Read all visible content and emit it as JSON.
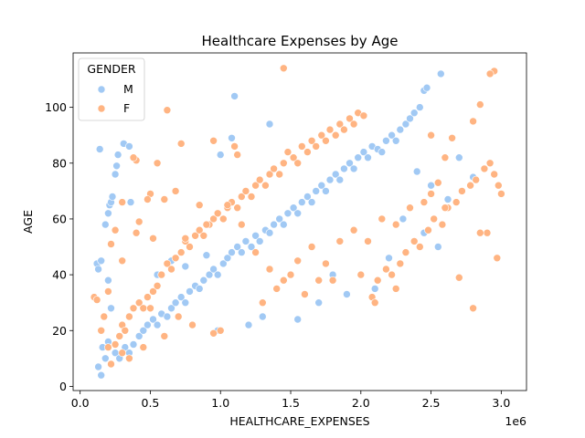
{
  "chart_data": {
    "type": "scatter",
    "title": "Healthcare Expenses by Age",
    "xlabel": "HEALTHCARE_EXPENSES",
    "ylabel": "AGE",
    "x_offset_label": "1e6",
    "xlim": [
      -0.05,
      3.18
    ],
    "ylim": [
      -1.5,
      119.5
    ],
    "x_ticks": [
      0.0,
      0.5,
      1.0,
      1.5,
      2.0,
      2.5,
      3.0
    ],
    "x_tick_labels": [
      "0.0",
      "0.5",
      "1.0",
      "1.5",
      "2.0",
      "2.5",
      "3.0"
    ],
    "y_ticks": [
      0,
      20,
      40,
      60,
      80,
      100
    ],
    "y_tick_labels": [
      "0",
      "20",
      "40",
      "60",
      "80",
      "100"
    ],
    "grid": false,
    "legend": {
      "title": "GENDER",
      "placement": "top-left"
    },
    "series": [
      {
        "name": "M",
        "color": "#a1c9f4",
        "points": [
          [
            0.13,
            7
          ],
          [
            0.15,
            4
          ],
          [
            0.16,
            14
          ],
          [
            0.18,
            10
          ],
          [
            0.2,
            16
          ],
          [
            0.25,
            12
          ],
          [
            0.28,
            10
          ],
          [
            0.32,
            14
          ],
          [
            0.35,
            12
          ],
          [
            0.38,
            15
          ],
          [
            0.42,
            18
          ],
          [
            0.45,
            20
          ],
          [
            0.48,
            22
          ],
          [
            0.52,
            24
          ],
          [
            0.55,
            22
          ],
          [
            0.58,
            26
          ],
          [
            0.62,
            25
          ],
          [
            0.65,
            28
          ],
          [
            0.68,
            30
          ],
          [
            0.72,
            32
          ],
          [
            0.75,
            30
          ],
          [
            0.78,
            34
          ],
          [
            0.82,
            36
          ],
          [
            0.85,
            35
          ],
          [
            0.88,
            38
          ],
          [
            0.92,
            40
          ],
          [
            0.95,
            42
          ],
          [
            0.98,
            40
          ],
          [
            1.02,
            44
          ],
          [
            1.05,
            46
          ],
          [
            1.08,
            48
          ],
          [
            1.12,
            50
          ],
          [
            1.15,
            48
          ],
          [
            1.18,
            52
          ],
          [
            1.22,
            50
          ],
          [
            1.25,
            54
          ],
          [
            1.28,
            52
          ],
          [
            1.32,
            56
          ],
          [
            1.35,
            55
          ],
          [
            1.38,
            58
          ],
          [
            1.42,
            60
          ],
          [
            1.45,
            58
          ],
          [
            1.48,
            62
          ],
          [
            1.52,
            64
          ],
          [
            1.55,
            62
          ],
          [
            1.58,
            66
          ],
          [
            1.62,
            68
          ],
          [
            1.65,
            66
          ],
          [
            1.68,
            70
          ],
          [
            1.72,
            72
          ],
          [
            1.75,
            70
          ],
          [
            1.78,
            74
          ],
          [
            1.82,
            76
          ],
          [
            1.85,
            74
          ],
          [
            1.88,
            78
          ],
          [
            1.92,
            80
          ],
          [
            1.95,
            78
          ],
          [
            1.98,
            82
          ],
          [
            2.02,
            84
          ],
          [
            2.05,
            82
          ],
          [
            2.08,
            86
          ],
          [
            2.12,
            85
          ],
          [
            2.15,
            84
          ],
          [
            2.18,
            88
          ],
          [
            2.22,
            90
          ],
          [
            2.25,
            88
          ],
          [
            2.28,
            92
          ],
          [
            2.32,
            94
          ],
          [
            2.35,
            96
          ],
          [
            2.38,
            98
          ],
          [
            2.42,
            100
          ],
          [
            2.45,
            106
          ],
          [
            2.47,
            107
          ],
          [
            2.57,
            112
          ],
          [
            0.12,
            44
          ],
          [
            0.13,
            42
          ],
          [
            0.14,
            85
          ],
          [
            0.15,
            45
          ],
          [
            0.18,
            58
          ],
          [
            0.2,
            62
          ],
          [
            0.21,
            65
          ],
          [
            0.22,
            66
          ],
          [
            0.23,
            68
          ],
          [
            0.25,
            76
          ],
          [
            0.26,
            79
          ],
          [
            0.27,
            83
          ],
          [
            0.31,
            87
          ],
          [
            0.35,
            86
          ],
          [
            0.36,
            66
          ],
          [
            0.2,
            38
          ],
          [
            0.22,
            28
          ],
          [
            1.1,
            104
          ],
          [
            1.35,
            94
          ],
          [
            1.08,
            89
          ],
          [
            1.0,
            83
          ],
          [
            0.98,
            20
          ],
          [
            1.2,
            22
          ],
          [
            1.3,
            25
          ],
          [
            1.55,
            24
          ],
          [
            1.7,
            30
          ],
          [
            1.9,
            33
          ],
          [
            2.1,
            35
          ],
          [
            1.8,
            40
          ],
          [
            2.2,
            46
          ],
          [
            2.45,
            55
          ],
          [
            2.6,
            64
          ],
          [
            2.7,
            82
          ],
          [
            2.62,
            67
          ],
          [
            2.8,
            75
          ],
          [
            2.5,
            72
          ],
          [
            2.3,
            60
          ],
          [
            2.55,
            50
          ],
          [
            2.4,
            77
          ],
          [
            0.65,
            45
          ],
          [
            0.75,
            43
          ],
          [
            0.9,
            47
          ],
          [
            0.55,
            40
          ]
        ]
      },
      {
        "name": "F",
        "color": "#ffb482",
        "points": [
          [
            0.1,
            32
          ],
          [
            0.12,
            31
          ],
          [
            0.15,
            20
          ],
          [
            0.17,
            25
          ],
          [
            0.2,
            14
          ],
          [
            0.22,
            8
          ],
          [
            0.25,
            15
          ],
          [
            0.28,
            18
          ],
          [
            0.3,
            22
          ],
          [
            0.32,
            20
          ],
          [
            0.35,
            25
          ],
          [
            0.38,
            28
          ],
          [
            0.42,
            30
          ],
          [
            0.45,
            28
          ],
          [
            0.48,
            32
          ],
          [
            0.52,
            34
          ],
          [
            0.55,
            36
          ],
          [
            0.58,
            40
          ],
          [
            0.62,
            44
          ],
          [
            0.65,
            42
          ],
          [
            0.68,
            46
          ],
          [
            0.72,
            48
          ],
          [
            0.75,
            52
          ],
          [
            0.78,
            50
          ],
          [
            0.82,
            54
          ],
          [
            0.85,
            56
          ],
          [
            0.88,
            54
          ],
          [
            0.92,
            58
          ],
          [
            0.95,
            60
          ],
          [
            0.98,
            62
          ],
          [
            1.02,
            60
          ],
          [
            1.05,
            64
          ],
          [
            1.08,
            66
          ],
          [
            1.12,
            64
          ],
          [
            1.15,
            68
          ],
          [
            1.18,
            70
          ],
          [
            1.22,
            68
          ],
          [
            1.25,
            72
          ],
          [
            1.28,
            74
          ],
          [
            1.32,
            72
          ],
          [
            1.35,
            76
          ],
          [
            1.38,
            78
          ],
          [
            1.42,
            76
          ],
          [
            1.45,
            80
          ],
          [
            1.48,
            84
          ],
          [
            1.52,
            82
          ],
          [
            1.55,
            80
          ],
          [
            1.58,
            86
          ],
          [
            1.62,
            84
          ],
          [
            1.65,
            88
          ],
          [
            1.68,
            86
          ],
          [
            1.72,
            90
          ],
          [
            1.75,
            88
          ],
          [
            1.78,
            92
          ],
          [
            1.82,
            90
          ],
          [
            1.85,
            94
          ],
          [
            1.88,
            92
          ],
          [
            1.92,
            96
          ],
          [
            1.95,
            94
          ],
          [
            1.98,
            98
          ],
          [
            2.02,
            97
          ],
          [
            2.08,
            32
          ],
          [
            2.12,
            38
          ],
          [
            2.18,
            42
          ],
          [
            2.22,
            40
          ],
          [
            2.28,
            44
          ],
          [
            2.32,
            48
          ],
          [
            2.38,
            52
          ],
          [
            2.42,
            50
          ],
          [
            2.48,
            56
          ],
          [
            2.52,
            60
          ],
          [
            2.58,
            58
          ],
          [
            2.62,
            64
          ],
          [
            2.68,
            66
          ],
          [
            2.72,
            70
          ],
          [
            2.78,
            72
          ],
          [
            2.82,
            74
          ],
          [
            2.88,
            78
          ],
          [
            2.92,
            80
          ],
          [
            2.95,
            76
          ],
          [
            2.98,
            72
          ],
          [
            3.0,
            69
          ],
          [
            2.97,
            46
          ],
          [
            2.9,
            55
          ],
          [
            2.85,
            55
          ],
          [
            2.8,
            28
          ],
          [
            2.7,
            39
          ],
          [
            2.6,
            64
          ],
          [
            2.55,
            73
          ],
          [
            2.5,
            69
          ],
          [
            1.45,
            114
          ],
          [
            2.95,
            113
          ],
          [
            2.92,
            112
          ],
          [
            2.85,
            101
          ],
          [
            2.8,
            95
          ],
          [
            2.65,
            89
          ],
          [
            2.5,
            90
          ],
          [
            2.6,
            82
          ],
          [
            0.62,
            99
          ],
          [
            1.1,
            86
          ],
          [
            1.12,
            83
          ],
          [
            0.95,
            88
          ],
          [
            0.72,
            87
          ],
          [
            0.55,
            80
          ],
          [
            0.5,
            69
          ],
          [
            0.48,
            67
          ],
          [
            0.4,
            81
          ],
          [
            0.38,
            82
          ],
          [
            0.3,
            66
          ],
          [
            0.25,
            56
          ],
          [
            0.22,
            51
          ],
          [
            0.2,
            34
          ],
          [
            0.3,
            45
          ],
          [
            0.4,
            55
          ],
          [
            0.42,
            59
          ],
          [
            0.52,
            53
          ],
          [
            0.6,
            67
          ],
          [
            0.68,
            70
          ],
          [
            0.75,
            53
          ],
          [
            0.85,
            65
          ],
          [
            0.9,
            58
          ],
          [
            1.05,
            65
          ],
          [
            1.15,
            58
          ],
          [
            1.25,
            48
          ],
          [
            1.35,
            42
          ],
          [
            1.45,
            38
          ],
          [
            1.55,
            45
          ],
          [
            1.65,
            50
          ],
          [
            1.75,
            44
          ],
          [
            1.85,
            52
          ],
          [
            1.95,
            56
          ],
          [
            2.05,
            52
          ],
          [
            2.15,
            60
          ],
          [
            2.25,
            58
          ],
          [
            2.35,
            64
          ],
          [
            2.45,
            66
          ],
          [
            1.0,
            20
          ],
          [
            0.95,
            19
          ],
          [
            0.8,
            22
          ],
          [
            0.7,
            25
          ],
          [
            0.6,
            18
          ],
          [
            0.5,
            28
          ],
          [
            0.45,
            14
          ],
          [
            0.35,
            10
          ],
          [
            0.3,
            12
          ],
          [
            1.3,
            30
          ],
          [
            1.4,
            35
          ],
          [
            1.5,
            40
          ],
          [
            1.6,
            33
          ],
          [
            1.7,
            38
          ],
          [
            1.8,
            38
          ],
          [
            2.0,
            40
          ],
          [
            2.1,
            30
          ],
          [
            2.25,
            35
          ]
        ]
      }
    ]
  }
}
